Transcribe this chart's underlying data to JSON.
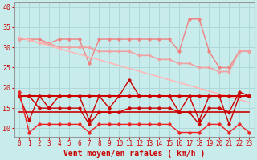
{
  "background_color": "#c8ecec",
  "grid_color": "#b0d8d8",
  "xlabel": "Vent moyen/en rafales ( km/h )",
  "xlim": [
    -0.5,
    23.5
  ],
  "ylim": [
    8,
    41
  ],
  "yticks": [
    10,
    15,
    20,
    25,
    30,
    35,
    40
  ],
  "xticks": [
    0,
    1,
    2,
    3,
    4,
    5,
    6,
    7,
    8,
    9,
    10,
    11,
    12,
    13,
    14,
    15,
    16,
    17,
    18,
    19,
    20,
    21,
    22,
    23
  ],
  "series": [
    {
      "label": "rafales_upper",
      "color": "#f08080",
      "lw": 1.0,
      "marker": "o",
      "markersize": 2.5,
      "y": [
        32,
        32,
        32,
        31,
        32,
        32,
        32,
        26,
        32,
        32,
        32,
        32,
        32,
        32,
        32,
        32,
        29,
        37,
        37,
        29,
        25,
        25,
        29,
        29
      ]
    },
    {
      "label": "trend_upper",
      "color": "#f0a0a0",
      "lw": 1.2,
      "marker": "o",
      "markersize": 2.0,
      "y": [
        32,
        32,
        31,
        31,
        30,
        30,
        30,
        30,
        29,
        29,
        29,
        29,
        28,
        28,
        27,
        27,
        26,
        26,
        25,
        25,
        24,
        24,
        29,
        29
      ]
    },
    {
      "label": "trend_line",
      "color": "#ffb8b8",
      "lw": 1.2,
      "marker": null,
      "markersize": 0,
      "y": [
        32.5,
        31.8,
        31.1,
        30.4,
        29.7,
        29.0,
        28.3,
        27.6,
        26.9,
        26.2,
        25.5,
        24.8,
        24.1,
        23.4,
        22.7,
        22.0,
        21.3,
        20.6,
        19.9,
        19.2,
        18.5,
        17.8,
        17.1,
        16.4
      ]
    },
    {
      "label": "rafales_lower_upper",
      "color": "#cc0000",
      "lw": 1.0,
      "marker": "o",
      "markersize": 2.5,
      "y": [
        18,
        12,
        18,
        15,
        18,
        18,
        18,
        12,
        18,
        15,
        18,
        22,
        18,
        18,
        18,
        18,
        14,
        18,
        12,
        18,
        18,
        11,
        18,
        18
      ]
    },
    {
      "label": "vent_flat",
      "color": "#cc0000",
      "lw": 1.5,
      "marker": "o",
      "markersize": 2.5,
      "y": [
        18,
        18,
        18,
        18,
        18,
        18,
        18,
        18,
        18,
        18,
        18,
        18,
        18,
        18,
        18,
        18,
        18,
        18,
        18,
        18,
        18,
        18,
        18,
        18
      ]
    },
    {
      "label": "vent_mid",
      "color": "#cc0000",
      "lw": 1.0,
      "marker": "o",
      "markersize": 2.5,
      "y": [
        18,
        18,
        15,
        15,
        15,
        15,
        15,
        11,
        14,
        14,
        14,
        15,
        15,
        15,
        15,
        15,
        14,
        14,
        11,
        15,
        15,
        14,
        19,
        18
      ]
    },
    {
      "label": "vent_low_trend",
      "color": "#cc0000",
      "lw": 1.2,
      "marker": null,
      "markersize": 0,
      "y": [
        14,
        14,
        14,
        14,
        14,
        14,
        14,
        14,
        14,
        14,
        14,
        14,
        14,
        14,
        14,
        14,
        14,
        14,
        14,
        14,
        14,
        14,
        14,
        14
      ]
    },
    {
      "label": "vent_bottom",
      "color": "#ee2222",
      "lw": 1.0,
      "marker": "o",
      "markersize": 2.5,
      "y": [
        19,
        9,
        11,
        11,
        11,
        11,
        11,
        9,
        11,
        11,
        11,
        11,
        11,
        11,
        11,
        11,
        9,
        9,
        9,
        11,
        11,
        9,
        11,
        9
      ]
    }
  ]
}
